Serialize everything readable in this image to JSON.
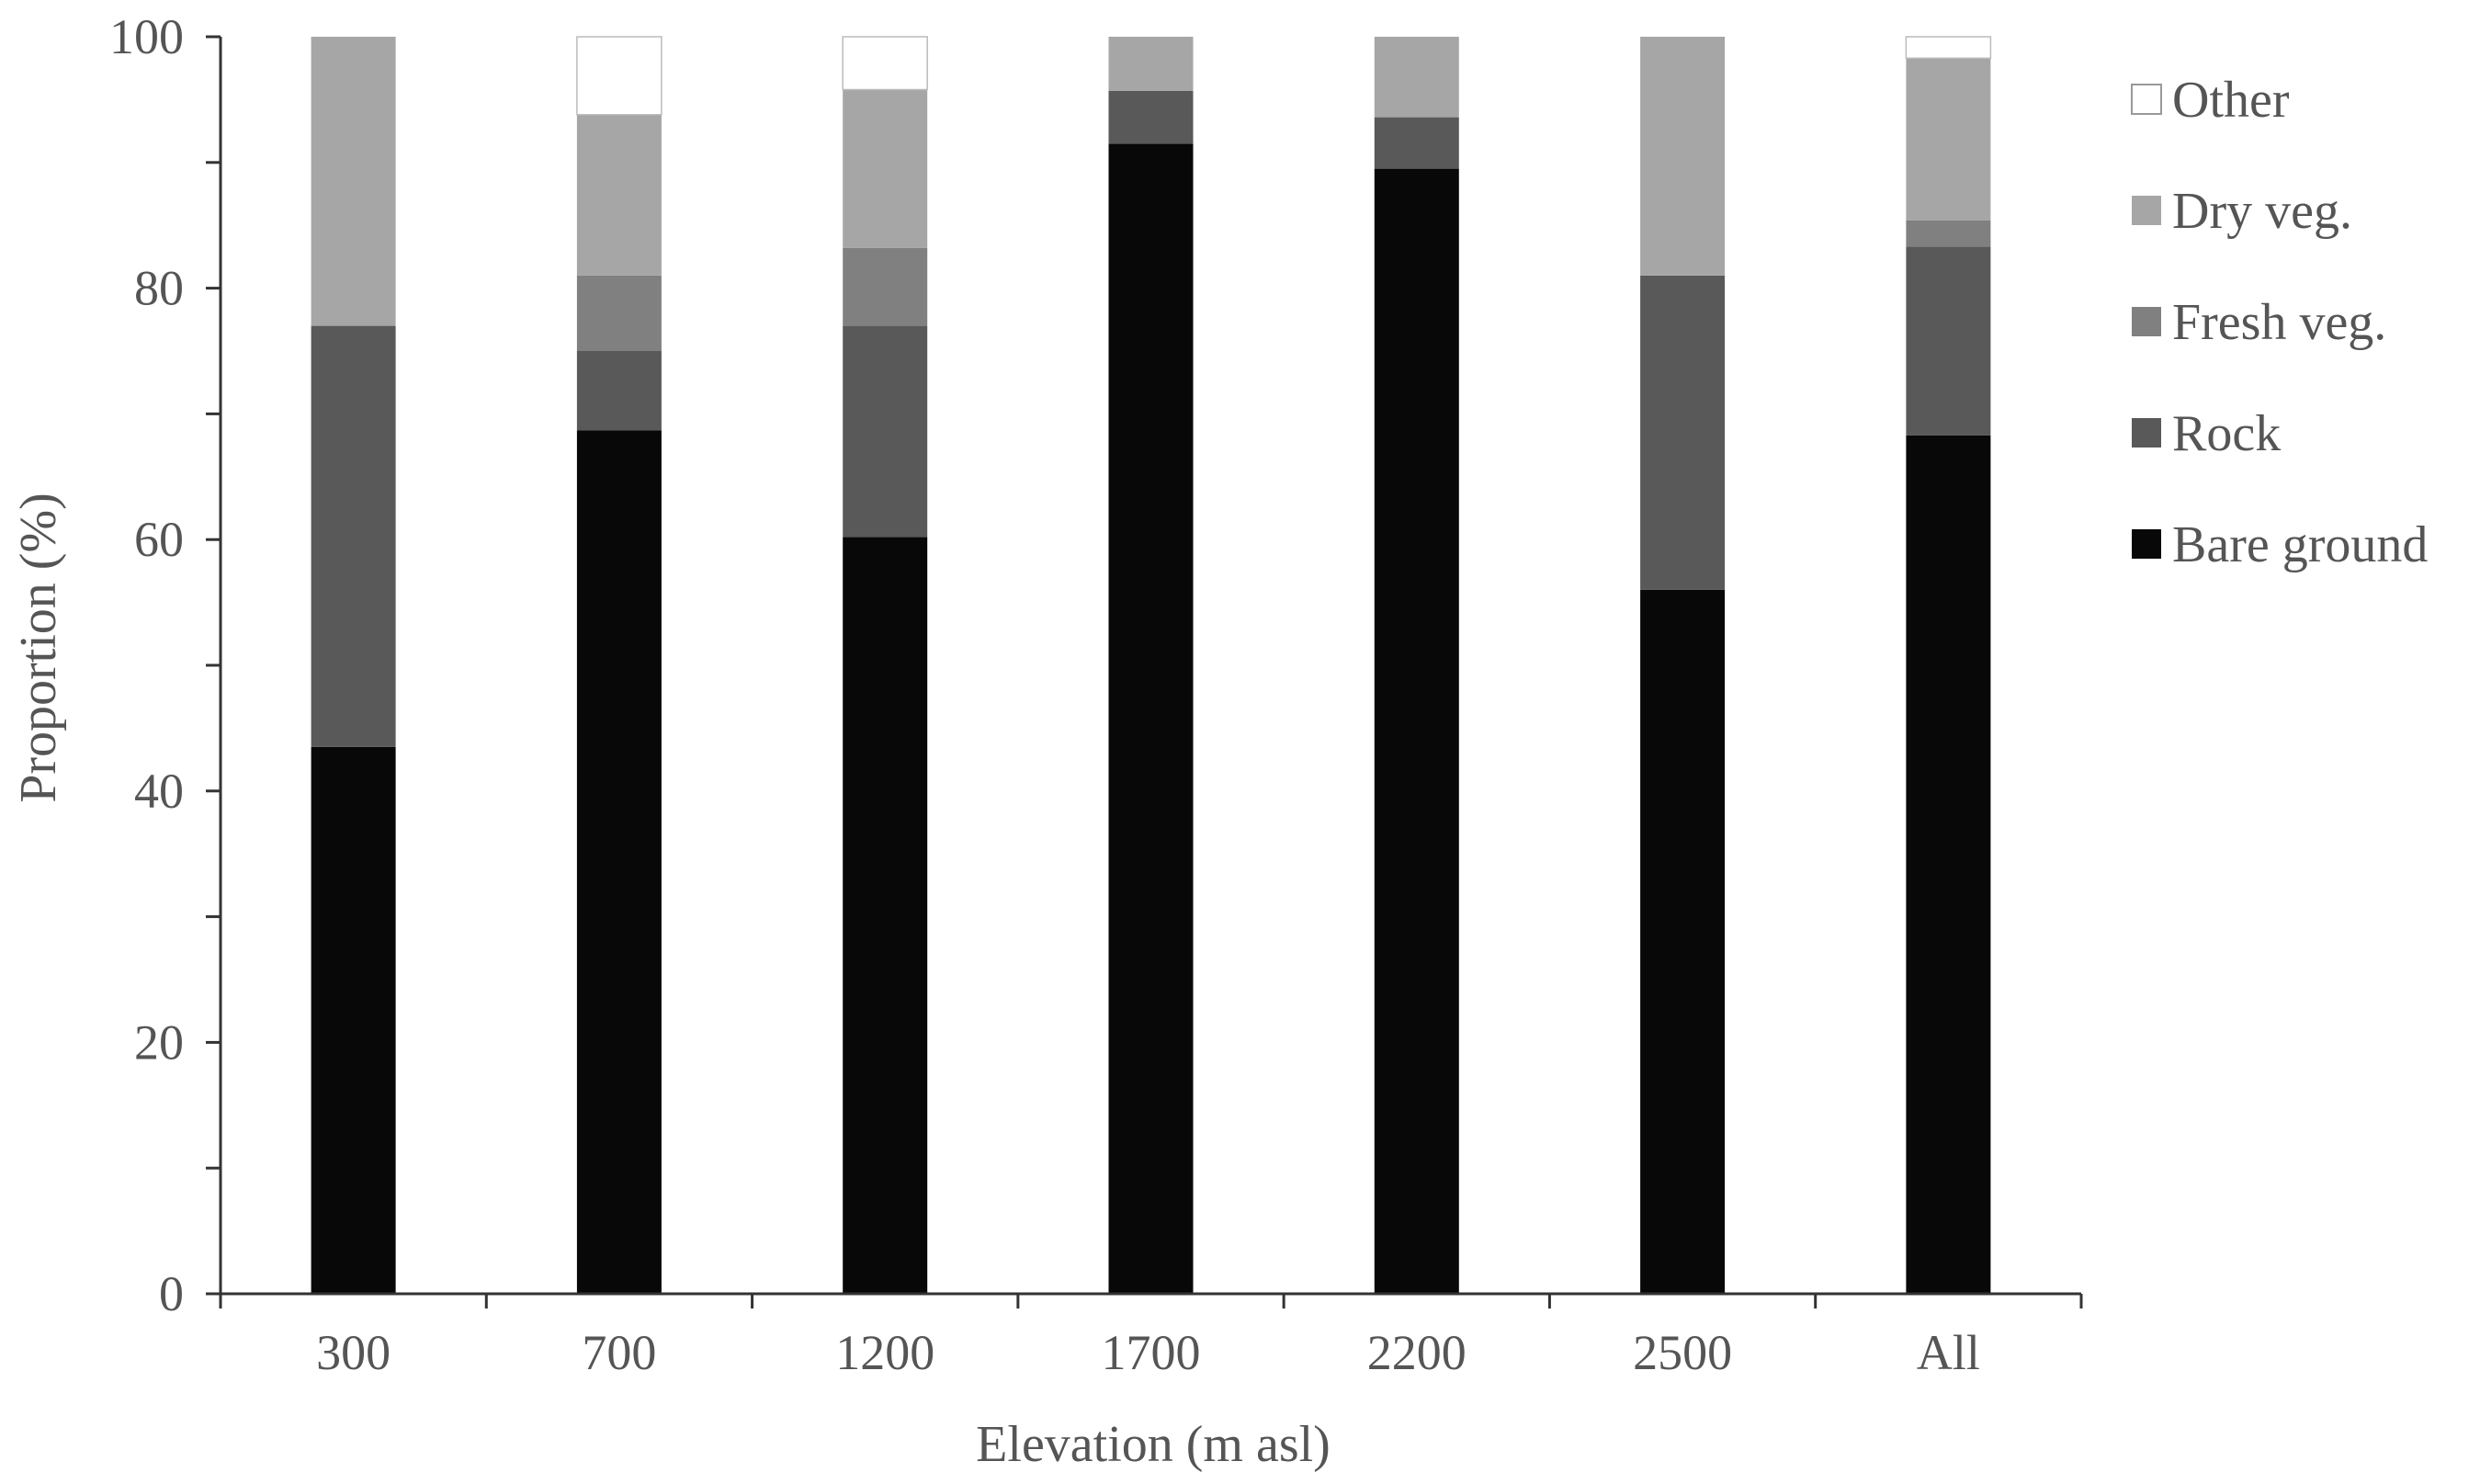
{
  "chart_data": {
    "type": "bar",
    "stacked": true,
    "xlabel": "Elevation (m asl)",
    "ylabel": "Proportion (%)",
    "ylim": [
      0,
      100
    ],
    "yticks": [
      0,
      20,
      40,
      60,
      80,
      100
    ],
    "grid": false,
    "legend_position": "right",
    "categories": [
      "300",
      "700",
      "1200",
      "1700",
      "2200",
      "2500",
      "All"
    ],
    "series": [
      {
        "name": "Bare ground",
        "color": "#080808",
        "values": [
          43.5,
          68.7,
          60.2,
          91.5,
          89.5,
          56.0,
          68.3
        ]
      },
      {
        "name": "Rock",
        "color": "#595959",
        "values": [
          33.5,
          6.3,
          16.8,
          4.2,
          4.1,
          25.0,
          15.0
        ]
      },
      {
        "name": "Fresh veg.",
        "color": "#808080",
        "values": [
          0.0,
          6.0,
          6.2,
          0.0,
          0.0,
          0.0,
          2.1
        ]
      },
      {
        "name": "Dry veg.",
        "color": "#a6a6a6",
        "values": [
          23.0,
          12.8,
          12.6,
          4.3,
          6.4,
          19.0,
          12.9
        ]
      },
      {
        "name": "Other",
        "color": "#ffffff",
        "values": [
          0.0,
          6.2,
          4.2,
          0.0,
          0.0,
          0.0,
          1.7
        ]
      }
    ]
  }
}
